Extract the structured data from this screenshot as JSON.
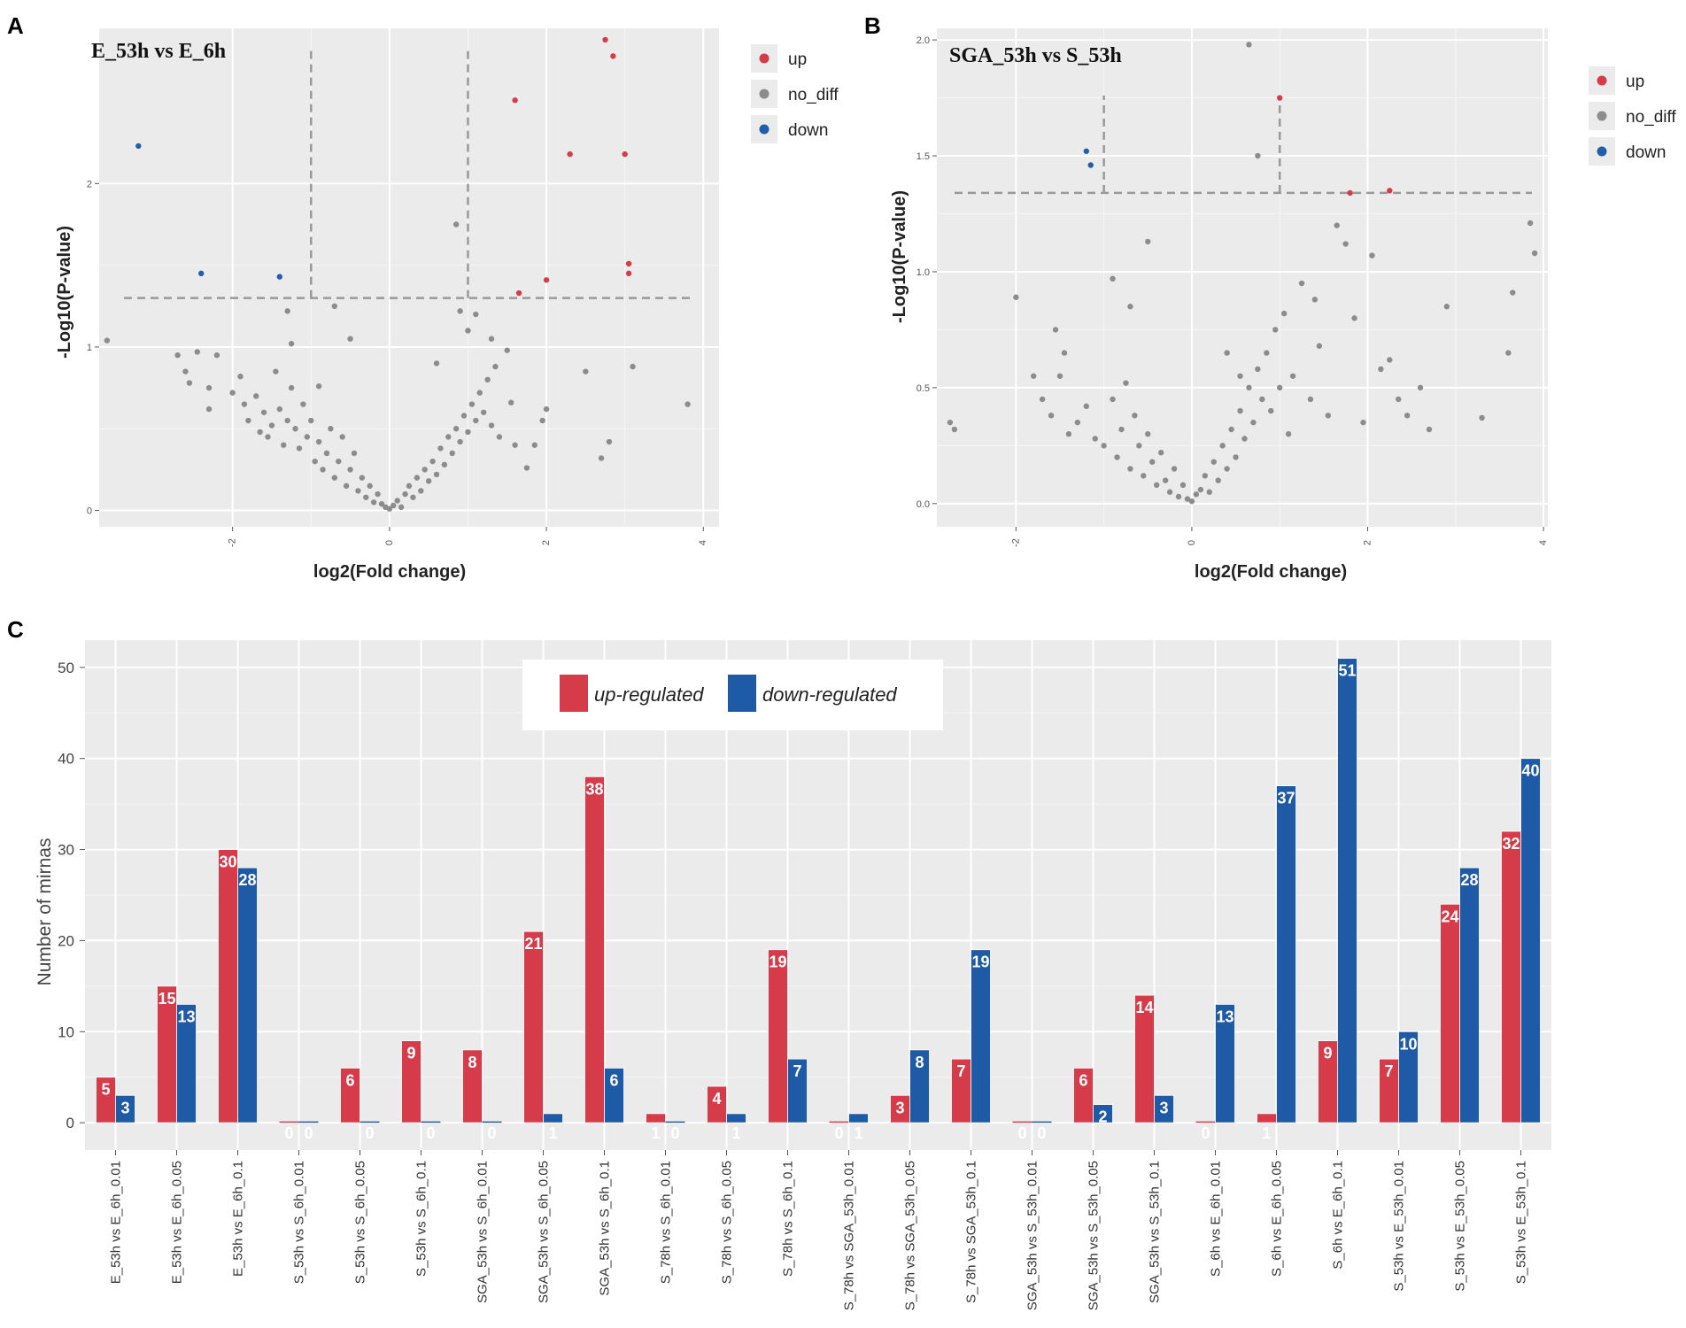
{
  "figure": {
    "panel_labels": [
      "A",
      "B",
      "C"
    ]
  },
  "chart_data": [
    {
      "type": "scatter",
      "panel": "A",
      "title": "E_53h vs E_6h",
      "xlabel": "log2(Fold change)",
      "ylabel": "-Log10(P-value)",
      "xlim": [
        -3.7,
        4.2
      ],
      "ylim": [
        -0.1,
        2.95
      ],
      "x_ticks": [
        -2,
        0,
        2,
        4
      ],
      "y_ticks": [
        0,
        1,
        2
      ],
      "threshold_y": 1.3,
      "threshold_x": [
        -1,
        1
      ],
      "legend": [
        {
          "name": "up",
          "color": "#d63b4a"
        },
        {
          "name": "no_diff",
          "color": "#8c8c8c"
        },
        {
          "name": "down",
          "color": "#2060a8"
        }
      ],
      "series": [
        {
          "name": "up",
          "color": "#d63b4a",
          "points": [
            [
              2.75,
              2.88
            ],
            [
              2.85,
              2.78
            ],
            [
              1.6,
              2.51
            ],
            [
              2.3,
              2.18
            ],
            [
              3.0,
              2.18
            ],
            [
              3.05,
              1.51
            ],
            [
              3.05,
              1.45
            ],
            [
              2.0,
              1.41
            ],
            [
              1.65,
              1.33
            ]
          ]
        },
        {
          "name": "down",
          "color": "#2060a8",
          "points": [
            [
              -3.2,
              2.23
            ],
            [
              -2.4,
              1.45
            ],
            [
              -1.4,
              1.43
            ]
          ]
        },
        {
          "name": "no_diff",
          "color": "#8c8c8c",
          "points": [
            [
              -3.6,
              1.04
            ],
            [
              -2.7,
              0.95
            ],
            [
              -2.6,
              0.85
            ],
            [
              -2.55,
              0.78
            ],
            [
              -2.45,
              0.97
            ],
            [
              -2.3,
              0.75
            ],
            [
              -2.2,
              0.95
            ],
            [
              -2.0,
              0.72
            ],
            [
              -1.9,
              0.82
            ],
            [
              -1.85,
              0.65
            ],
            [
              -1.8,
              0.55
            ],
            [
              -1.7,
              0.7
            ],
            [
              -1.65,
              0.48
            ],
            [
              -1.6,
              0.6
            ],
            [
              -1.55,
              0.45
            ],
            [
              -1.5,
              0.52
            ],
            [
              -1.45,
              0.85
            ],
            [
              -1.4,
              0.62
            ],
            [
              -1.35,
              0.4
            ],
            [
              -1.3,
              0.55
            ],
            [
              -1.25,
              0.75
            ],
            [
              -1.2,
              0.5
            ],
            [
              -1.15,
              0.38
            ],
            [
              -1.1,
              0.65
            ],
            [
              -1.05,
              0.45
            ],
            [
              -1.0,
              0.55
            ],
            [
              -0.95,
              0.3
            ],
            [
              -0.9,
              0.42
            ],
            [
              -0.85,
              0.25
            ],
            [
              -0.8,
              0.35
            ],
            [
              -0.75,
              0.5
            ],
            [
              -0.7,
              0.2
            ],
            [
              -0.65,
              0.3
            ],
            [
              -0.6,
              0.45
            ],
            [
              -0.55,
              0.15
            ],
            [
              -0.5,
              0.25
            ],
            [
              -0.45,
              0.35
            ],
            [
              -0.4,
              0.12
            ],
            [
              -0.35,
              0.2
            ],
            [
              -0.3,
              0.08
            ],
            [
              -0.25,
              0.15
            ],
            [
              -0.2,
              0.05
            ],
            [
              -0.15,
              0.1
            ],
            [
              -0.1,
              0.04
            ],
            [
              -0.05,
              0.02
            ],
            [
              0.0,
              0.01
            ],
            [
              0.05,
              0.03
            ],
            [
              0.1,
              0.06
            ],
            [
              0.15,
              0.02
            ],
            [
              0.2,
              0.1
            ],
            [
              0.25,
              0.15
            ],
            [
              0.3,
              0.08
            ],
            [
              0.35,
              0.2
            ],
            [
              0.4,
              0.12
            ],
            [
              0.45,
              0.25
            ],
            [
              0.5,
              0.18
            ],
            [
              0.55,
              0.3
            ],
            [
              0.6,
              0.22
            ],
            [
              0.65,
              0.38
            ],
            [
              0.7,
              0.28
            ],
            [
              0.75,
              0.45
            ],
            [
              0.8,
              0.35
            ],
            [
              0.85,
              0.5
            ],
            [
              0.9,
              0.42
            ],
            [
              0.95,
              0.58
            ],
            [
              1.0,
              0.48
            ],
            [
              1.05,
              0.65
            ],
            [
              1.1,
              0.55
            ],
            [
              1.15,
              0.72
            ],
            [
              1.2,
              0.6
            ],
            [
              1.25,
              0.8
            ],
            [
              1.3,
              0.52
            ],
            [
              1.35,
              0.88
            ],
            [
              1.4,
              0.45
            ],
            [
              1.5,
              0.98
            ],
            [
              1.55,
              0.66
            ],
            [
              1.6,
              0.4
            ],
            [
              1.75,
              0.26
            ],
            [
              1.85,
              0.4
            ],
            [
              1.95,
              0.55
            ],
            [
              2.0,
              0.62
            ],
            [
              2.5,
              0.85
            ],
            [
              2.7,
              0.32
            ],
            [
              2.8,
              0.42
            ],
            [
              3.1,
              0.88
            ],
            [
              3.8,
              0.65
            ],
            [
              -0.5,
              1.05
            ],
            [
              -0.9,
              0.76
            ],
            [
              -1.25,
              1.02
            ],
            [
              -2.3,
              0.62
            ],
            [
              0.6,
              0.9
            ],
            [
              1.1,
              1.2
            ],
            [
              0.85,
              1.75
            ],
            [
              0.9,
              1.22
            ],
            [
              1.3,
              1.05
            ],
            [
              -1.3,
              1.22
            ],
            [
              -0.7,
              1.25
            ],
            [
              1.0,
              1.1
            ]
          ]
        }
      ]
    },
    {
      "type": "scatter",
      "panel": "B",
      "title": "SGA_53h vs S_53h",
      "xlabel": "log2(Fold change)",
      "ylabel": "-Log10(P-value)",
      "xlim": [
        -2.9,
        4.05
      ],
      "ylim": [
        -0.1,
        2.05
      ],
      "x_ticks": [
        -2,
        0,
        2,
        4
      ],
      "y_ticks": [
        0.0,
        0.5,
        1.0,
        1.5,
        2.0
      ],
      "threshold_y": 1.34,
      "threshold_x": [
        -1,
        1
      ],
      "legend": [
        {
          "name": "up",
          "color": "#d63b4a"
        },
        {
          "name": "no_diff",
          "color": "#8c8c8c"
        },
        {
          "name": "down",
          "color": "#2060a8"
        }
      ],
      "series": [
        {
          "name": "up",
          "color": "#d63b4a",
          "points": [
            [
              1.0,
              1.75
            ],
            [
              1.8,
              1.34
            ],
            [
              2.25,
              1.35
            ]
          ]
        },
        {
          "name": "down",
          "color": "#2060a8",
          "points": [
            [
              -1.2,
              1.52
            ],
            [
              -1.15,
              1.46
            ]
          ]
        },
        {
          "name": "no_diff",
          "color": "#8c8c8c",
          "points": [
            [
              0.65,
              1.98
            ],
            [
              0.75,
              1.5
            ],
            [
              -2.75,
              0.35
            ],
            [
              -2.7,
              0.32
            ],
            [
              -2.0,
              0.89
            ],
            [
              -1.8,
              0.55
            ],
            [
              -1.7,
              0.45
            ],
            [
              -1.6,
              0.38
            ],
            [
              -1.5,
              0.55
            ],
            [
              -1.45,
              0.65
            ],
            [
              -1.4,
              0.3
            ],
            [
              -1.3,
              0.35
            ],
            [
              -1.2,
              0.42
            ],
            [
              -1.1,
              0.28
            ],
            [
              -1.0,
              0.25
            ],
            [
              -0.9,
              0.45
            ],
            [
              -0.85,
              0.2
            ],
            [
              -0.8,
              0.32
            ],
            [
              -0.75,
              0.52
            ],
            [
              -0.7,
              0.15
            ],
            [
              -0.65,
              0.38
            ],
            [
              -0.6,
              0.25
            ],
            [
              -0.55,
              0.12
            ],
            [
              -0.5,
              0.3
            ],
            [
              -0.45,
              0.18
            ],
            [
              -0.4,
              0.08
            ],
            [
              -0.35,
              0.22
            ],
            [
              -0.3,
              0.1
            ],
            [
              -0.25,
              0.05
            ],
            [
              -0.2,
              0.15
            ],
            [
              -0.15,
              0.03
            ],
            [
              -0.1,
              0.08
            ],
            [
              -0.05,
              0.02
            ],
            [
              0.0,
              0.01
            ],
            [
              0.05,
              0.04
            ],
            [
              0.1,
              0.06
            ],
            [
              0.15,
              0.12
            ],
            [
              0.2,
              0.05
            ],
            [
              0.25,
              0.18
            ],
            [
              0.3,
              0.1
            ],
            [
              0.35,
              0.25
            ],
            [
              0.4,
              0.15
            ],
            [
              0.45,
              0.32
            ],
            [
              0.5,
              0.2
            ],
            [
              0.55,
              0.4
            ],
            [
              0.6,
              0.28
            ],
            [
              0.65,
              0.5
            ],
            [
              0.7,
              0.35
            ],
            [
              0.75,
              0.58
            ],
            [
              0.8,
              0.45
            ],
            [
              0.85,
              0.65
            ],
            [
              0.9,
              0.4
            ],
            [
              0.95,
              0.75
            ],
            [
              1.0,
              0.5
            ],
            [
              1.05,
              0.82
            ],
            [
              1.1,
              0.3
            ],
            [
              1.15,
              0.55
            ],
            [
              1.25,
              0.95
            ],
            [
              1.35,
              0.45
            ],
            [
              1.45,
              0.68
            ],
            [
              1.55,
              0.38
            ],
            [
              1.65,
              1.2
            ],
            [
              1.75,
              1.12
            ],
            [
              1.85,
              0.8
            ],
            [
              1.95,
              0.35
            ],
            [
              2.05,
              1.07
            ],
            [
              2.15,
              0.58
            ],
            [
              2.25,
              0.62
            ],
            [
              2.35,
              0.45
            ],
            [
              2.45,
              0.38
            ],
            [
              2.6,
              0.5
            ],
            [
              2.7,
              0.32
            ],
            [
              2.9,
              0.85
            ],
            [
              3.3,
              0.37
            ],
            [
              3.6,
              0.65
            ],
            [
              3.65,
              0.91
            ],
            [
              3.85,
              1.21
            ],
            [
              3.9,
              1.08
            ],
            [
              -0.5,
              1.13
            ],
            [
              -0.9,
              0.97
            ],
            [
              -0.7,
              0.85
            ],
            [
              -1.55,
              0.75
            ],
            [
              0.4,
              0.65
            ],
            [
              0.55,
              0.55
            ],
            [
              1.4,
              0.88
            ]
          ]
        }
      ]
    },
    {
      "type": "bar",
      "panel": "C",
      "ylabel": "Number of mirnas",
      "ylim": [
        -3,
        53
      ],
      "y_ticks": [
        0,
        10,
        20,
        30,
        40,
        50
      ],
      "categories": [
        "E_53h vs E_6h_0.01",
        "E_53h vs E_6h_0.05",
        "E_53h vs E_6h_0.1",
        "S_53h vs S_6h_0.01",
        "S_53h vs S_6h_0.05",
        "S_53h vs S_6h_0.1",
        "SGA_53h vs S_6h_0.01",
        "SGA_53h vs S_6h_0.05",
        "SGA_53h vs S_6h_0.1",
        "S_78h vs S_6h_0.01",
        "S_78h vs S_6h_0.05",
        "S_78h vs S_6h_0.1",
        "S_78h vs SGA_53h_0.01",
        "S_78h vs SGA_53h_0.05",
        "S_78h vs SGA_53h_0.1",
        "SGA_53h vs S_53h_0.01",
        "SGA_53h vs S_53h_0.05",
        "SGA_53h vs S_53h_0.1",
        "S_6h vs E_6h_0.01",
        "S_6h vs E_6h_0.05",
        "S_6h vs E_6h_0.1",
        "S_53h vs E_53h_0.01",
        "S_53h vs E_53h_0.05",
        "S_53h vs E_53h_0.1"
      ],
      "series": [
        {
          "name": "up-regulated",
          "color": "#d63b4a",
          "values": [
            5,
            15,
            30,
            0,
            6,
            9,
            8,
            21,
            38,
            1,
            4,
            19,
            0,
            3,
            7,
            0,
            6,
            14,
            0,
            1,
            9,
            7,
            24,
            32
          ]
        },
        {
          "name": "down-regulated",
          "color": "#1f5aa6",
          "values": [
            3,
            13,
            28,
            0,
            0,
            0,
            0,
            1,
            6,
            0,
            1,
            7,
            1,
            8,
            19,
            0,
            2,
            3,
            13,
            37,
            51,
            10,
            28,
            40
          ]
        }
      ]
    }
  ]
}
